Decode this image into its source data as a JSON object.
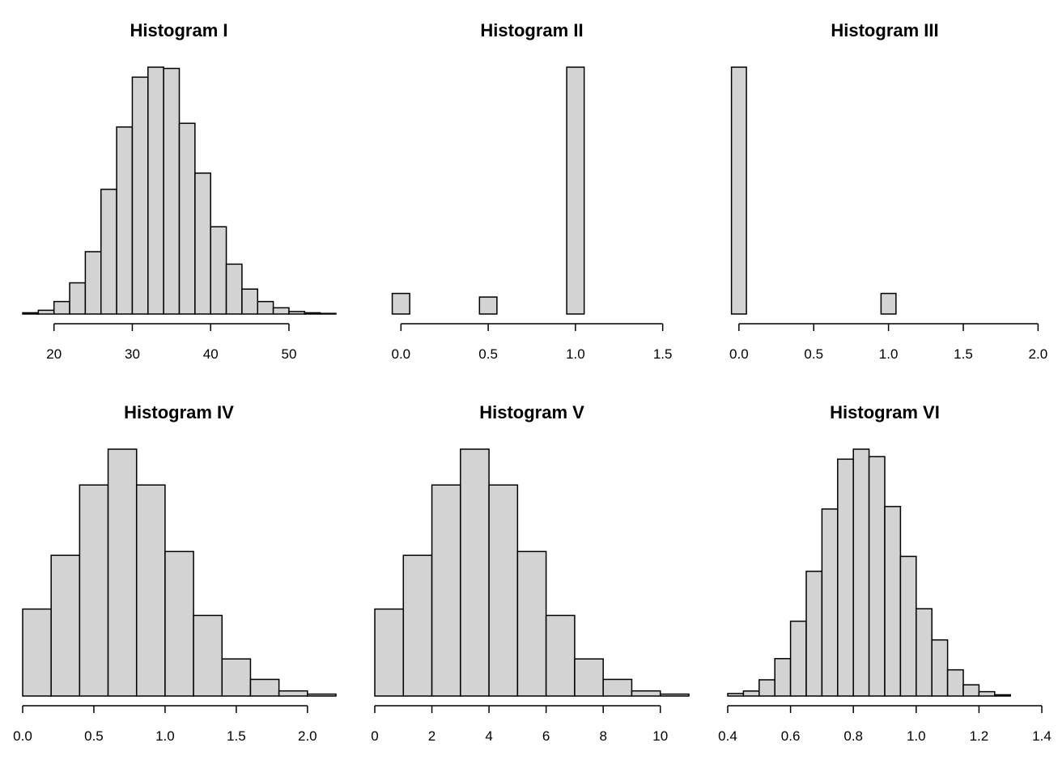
{
  "chart_data": [
    {
      "type": "bar",
      "title": "Histogram I",
      "bin_start": 16,
      "bin_width": 2,
      "values": [
        1,
        3,
        10,
        25,
        50,
        100,
        150,
        190,
        198,
        197,
        153,
        113,
        70,
        40,
        20,
        10,
        5,
        2,
        1,
        0.5
      ],
      "xlim": [
        16,
        56
      ],
      "ylim": [
        0,
        198
      ],
      "xticks": [
        20,
        30,
        40,
        50
      ],
      "xtick_labels": [
        "20",
        "30",
        "40",
        "50"
      ]
    },
    {
      "type": "bar",
      "title": "Histogram II",
      "bin_start": -0.05,
      "bin_width": 0.1,
      "values": [
        200,
        0,
        0,
        0,
        0,
        165,
        0,
        0,
        0,
        0,
        2400,
        0,
        0,
        0,
        0,
        0,
        0,
        0
      ],
      "xlim": [
        -0.15,
        1.65
      ],
      "ylim": [
        0,
        2400
      ],
      "xticks": [
        0,
        0.5,
        1,
        1.5
      ],
      "xtick_labels": [
        "0.0",
        "0.5",
        "1.0",
        "1.5"
      ]
    },
    {
      "type": "bar",
      "title": "Histogram III",
      "bin_start": -0.05,
      "bin_width": 0.1,
      "values": [
        2400,
        0,
        0,
        0,
        0,
        0,
        0,
        0,
        0,
        0,
        200,
        0,
        0,
        0,
        0,
        0,
        0,
        0,
        0,
        0,
        0
      ],
      "xlim": [
        -0.075,
        2.025
      ],
      "ylim": [
        0,
        2400
      ],
      "xticks": [
        0,
        0.5,
        1,
        1.5,
        2
      ],
      "xtick_labels": [
        "0.0",
        "0.5",
        "1.0",
        "1.5",
        "2.0"
      ]
    },
    {
      "type": "bar",
      "title": "Histogram IV",
      "bin_start": 0,
      "bin_width": 0.2,
      "values": [
        68,
        110,
        165,
        193,
        165,
        113,
        63,
        29,
        13,
        4,
        1.5
      ],
      "xlim": [
        0,
        2.2
      ],
      "ylim": [
        0,
        193
      ],
      "xticks": [
        0,
        0.5,
        1,
        1.5,
        2
      ],
      "xtick_labels": [
        "0.0",
        "0.5",
        "1.0",
        "1.5",
        "2.0"
      ]
    },
    {
      "type": "bar",
      "title": "Histogram V",
      "bin_start": 0,
      "bin_width": 1,
      "values": [
        68,
        110,
        165,
        193,
        165,
        113,
        63,
        29,
        13,
        4,
        1.5
      ],
      "xlim": [
        0,
        11
      ],
      "ylim": [
        0,
        193
      ],
      "xticks": [
        0,
        2,
        4,
        6,
        8,
        10
      ],
      "xtick_labels": [
        "0",
        "2",
        "4",
        "6",
        "8",
        "10"
      ]
    },
    {
      "type": "bar",
      "title": "Histogram VI",
      "bin_start": 0.4,
      "bin_width": 0.05,
      "values": [
        2,
        4,
        13,
        30,
        60,
        100,
        150,
        190,
        198,
        192,
        152,
        112,
        70,
        45,
        21,
        9,
        3.5,
        1
      ],
      "xlim": [
        0.4,
        1.4
      ],
      "ylim": [
        0,
        198
      ],
      "xticks": [
        0.4,
        0.6,
        0.8,
        1.0,
        1.2,
        1.4
      ],
      "xtick_labels": [
        "0.4",
        "0.6",
        "0.8",
        "1.0",
        "1.2",
        "1.4"
      ]
    }
  ]
}
